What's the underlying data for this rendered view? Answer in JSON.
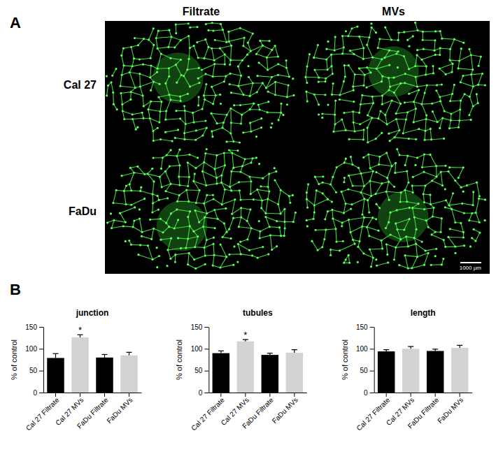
{
  "figure": {
    "panel_a": {
      "letter": "A",
      "columns": [
        "Filtrate",
        "MVs"
      ],
      "rows": [
        "Cal 27",
        "FaDu"
      ],
      "scale_bar": "1000 µm"
    },
    "panel_b_letter": "B"
  },
  "chart_data": [
    {
      "type": "bar",
      "title": "junction",
      "ylabel": "% of control",
      "categories": [
        "Cal 27 Filtrate",
        "Cal 27 MVs",
        "FaDu Filtrate",
        "FaDu MVs"
      ],
      "values": [
        79,
        126,
        80,
        85
      ],
      "errors": [
        10,
        6,
        7,
        7
      ],
      "colors": [
        "#000000",
        "#d3d3d3",
        "#000000",
        "#d3d3d3"
      ],
      "ylim": [
        0,
        150
      ],
      "yticks": [
        0,
        50,
        100,
        150
      ],
      "annotations": [
        {
          "category": "Cal 27 MVs",
          "text": "*"
        }
      ]
    },
    {
      "type": "bar",
      "title": "tubules",
      "ylabel": "% of control",
      "categories": [
        "Cal 27 Filtrate",
        "Cal 27 MVs",
        "FaDu Filtrate",
        "FaDu MVs"
      ],
      "values": [
        90,
        117,
        86,
        91
      ],
      "errors": [
        5,
        4,
        4,
        7
      ],
      "colors": [
        "#000000",
        "#d3d3d3",
        "#000000",
        "#d3d3d3"
      ],
      "ylim": [
        0,
        150
      ],
      "yticks": [
        0,
        50,
        100,
        150
      ],
      "annotations": [
        {
          "category": "Cal 27 MVs",
          "text": "*"
        }
      ]
    },
    {
      "type": "bar",
      "title": "length",
      "ylabel": "% of control",
      "categories": [
        "Cal 27 Filtrate",
        "Cal 27 MVs",
        "FaDu Filtrate",
        "FaDu MVs"
      ],
      "values": [
        94,
        100,
        95,
        102
      ],
      "errors": [
        4,
        5,
        4,
        6
      ],
      "colors": [
        "#000000",
        "#d3d3d3",
        "#000000",
        "#d3d3d3"
      ],
      "ylim": [
        0,
        150
      ],
      "yticks": [
        0,
        50,
        100,
        150
      ]
    }
  ]
}
